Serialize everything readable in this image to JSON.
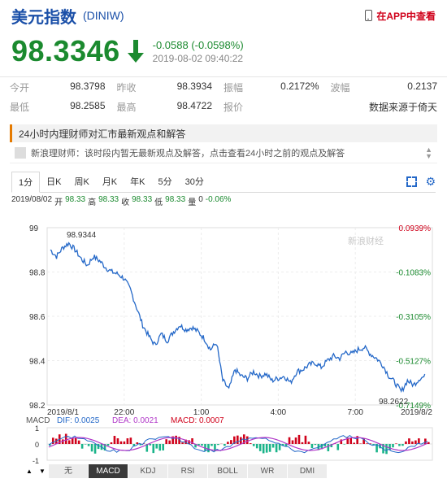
{
  "header": {
    "name": "美元指数",
    "code": "(DINIW)",
    "app_link": "在APP中查看"
  },
  "quote": {
    "price": "98.3346",
    "change": "-0.0588 (-0.0598%)",
    "time": "2019-08-02 09:40:22"
  },
  "stats": {
    "row1": [
      {
        "label": "今开",
        "value": "98.3798"
      },
      {
        "label": "昨收",
        "value": "98.3934"
      },
      {
        "label": "振幅",
        "value": "0.2172%"
      },
      {
        "label": "波幅",
        "value": "0.2137"
      }
    ],
    "row2": [
      {
        "label": "最低",
        "value": "98.2585"
      },
      {
        "label": "最高",
        "value": "98.4722"
      },
      {
        "label": "报价",
        "value": "数据来源于倚天"
      }
    ]
  },
  "news": {
    "headline": "24小时内理财师对汇市最新观点和解答",
    "item": "新浪理财师：该时段内暂无最新观点及解答，点击查看24小时之前的观点及解答"
  },
  "tabs": [
    "1分",
    "日K",
    "周K",
    "月K",
    "年K",
    "5分",
    "30分"
  ],
  "ohlc": {
    "date": "2019/08/02",
    "open_label": "开",
    "open": "98.33",
    "high_label": "高",
    "high": "98.33",
    "close_label": "收",
    "close": "98.33",
    "low_label": "低",
    "low": "98.33",
    "vol_label": "量",
    "vol": "0",
    "pct": "-0.06%"
  },
  "colors": {
    "up": "#d0021b",
    "down": "#1b8a2f",
    "line": "#2468c8",
    "accent": "#1a4fa8"
  },
  "chart_data": {
    "type": "line",
    "y_ticks": [
      "99",
      "98.8",
      "98.6",
      "98.4",
      "98.2"
    ],
    "ylim": [
      98.2,
      99.0
    ],
    "pct_ticks": [
      "0.0939%",
      "-0.1083%",
      "-0.3105%",
      "-0.5127%",
      "-0.7149%"
    ],
    "x_ticks": [
      "2019/8/1",
      "22:00",
      "1:00",
      "4:00",
      "7:00",
      "2019/8/2"
    ],
    "max_label": "98.9344",
    "min_label": "98.2622",
    "watermark": "新浪财经",
    "series": [
      {
        "values": [
          98.9,
          98.87,
          98.91,
          98.93,
          98.9,
          98.86,
          98.83,
          98.87,
          98.85,
          98.82,
          98.8,
          98.79,
          98.77,
          98.72,
          98.64,
          98.56,
          98.51,
          98.47,
          98.52,
          98.49,
          98.53,
          98.56,
          98.54,
          98.55,
          98.53,
          98.5,
          98.45,
          98.48,
          98.31,
          98.27,
          98.36,
          98.33,
          98.32,
          98.35,
          98.33,
          98.34,
          98.31,
          98.32,
          98.33,
          98.3,
          98.35,
          98.36,
          98.38,
          98.39,
          98.37,
          98.4,
          98.42,
          98.41,
          98.44,
          98.43,
          98.45,
          98.46,
          98.43,
          98.41,
          98.38,
          98.33,
          98.3,
          98.26,
          98.31,
          98.29,
          98.32,
          98.33
        ]
      }
    ]
  },
  "macd": {
    "label": "MACD",
    "dif": "DIF: 0.0025",
    "dea": "DEA: 0.0021",
    "macd": "MACD: 0.0007",
    "y_ticks": [
      "1",
      "0",
      "-1"
    ]
  },
  "indicators": [
    "无",
    "MACD",
    "KDJ",
    "RSI",
    "BOLL",
    "WR",
    "DMI"
  ]
}
